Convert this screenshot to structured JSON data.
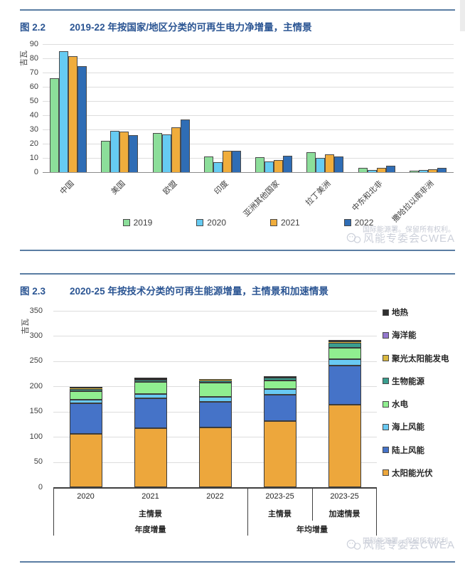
{
  "figure1": {
    "tag": "图 2.2",
    "title": "2019-22 年按国家/地区分类的可再生电力净增量，主情景",
    "watermark": {
      "line1": "国际能源署。保留所有权利。",
      "line2": "风能专委会CWEA"
    }
  },
  "figure2": {
    "tag": "图 2.3",
    "title": "2020-25 年按技术分类的可再生能源增量，主情景和加速情景",
    "watermark": {
      "line1": "国际能源署。保留所有权利。",
      "line2": "风能专委会CWEA"
    }
  },
  "chart_data": [
    {
      "type": "bar",
      "stacked": false,
      "title": "2019-22 年按国家/地区分类的可再生电力净增量，主情景",
      "ylabel": "吉瓦",
      "xlabel": "",
      "ylim": [
        0,
        90
      ],
      "ytick_step": 10,
      "grid": true,
      "legend_position": "bottom",
      "categories": [
        "中国",
        "美国",
        "欧盟",
        "印度",
        "亚洲其他国家",
        "拉丁美洲",
        "中东和北非",
        "撒哈拉以南非洲"
      ],
      "series": [
        {
          "name": "2019",
          "color": "#8cde9a",
          "values": [
            66,
            22,
            27.5,
            11,
            10.5,
            14,
            3,
            1
          ]
        },
        {
          "name": "2020",
          "color": "#66cbf2",
          "values": [
            85,
            29,
            26.5,
            7,
            7.5,
            10,
            1.5,
            1.5
          ]
        },
        {
          "name": "2021",
          "color": "#f0ad3c",
          "values": [
            81.5,
            28.5,
            31.5,
            15,
            8.5,
            12.5,
            3,
            2
          ]
        },
        {
          "name": "2022",
          "color": "#2f6db5",
          "values": [
            74.5,
            26,
            37,
            15,
            11.5,
            11,
            4.5,
            3
          ]
        }
      ]
    },
    {
      "type": "bar",
      "stacked": true,
      "title": "2020-25 年按技术分类的可再生能源增量，主情景和加速情景",
      "ylabel": "吉瓦",
      "xlabel": "",
      "ylim": [
        0,
        350
      ],
      "ytick_step": 50,
      "grid": true,
      "legend_position": "right",
      "categories": [
        "2020",
        "2021",
        "2022",
        "2023-25",
        "2023-25"
      ],
      "series": [
        {
          "name": "太阳能光伏",
          "color": "#eda73c",
          "values": [
            106,
            117,
            118,
            131,
            164
          ]
        },
        {
          "name": "陆上风能",
          "color": "#4573c8",
          "values": [
            61,
            60,
            52,
            52,
            77
          ]
        },
        {
          "name": "海上风能",
          "color": "#69c9f2",
          "values": [
            6,
            8,
            9,
            12,
            13
          ]
        },
        {
          "name": "水电",
          "color": "#90ee90",
          "values": [
            17,
            24,
            29,
            17,
            22
          ]
        },
        {
          "name": "生物能源",
          "color": "#3a9e8f",
          "values": [
            5,
            4,
            4,
            5,
            11
          ]
        },
        {
          "name": "聚光太阳能发电",
          "color": "#d9b83f",
          "values": [
            0.5,
            0.5,
            0.5,
            0.5,
            1
          ]
        },
        {
          "name": "海洋能",
          "color": "#9478ce",
          "values": [
            0.3,
            0.3,
            0.2,
            0.3,
            0.5
          ]
        },
        {
          "name": "地热",
          "color": "#2f2f2f",
          "values": [
            3,
            3,
            2.5,
            2,
            3.5
          ]
        }
      ],
      "legend_order_top_to_bottom": [
        "地热",
        "海洋能",
        "聚光太阳能发电",
        "生物能源",
        "水电",
        "海上风能",
        "陆上风能",
        "太阳能光伏"
      ],
      "x_axis_groups": [
        {
          "row": 2,
          "labels": [
            {
              "text": "主情景",
              "from": 0,
              "to": 2
            },
            {
              "text": "主情景",
              "from": 3,
              "to": 3
            },
            {
              "text": "加速情景",
              "from": 4,
              "to": 4
            }
          ]
        },
        {
          "row": 3,
          "labels": [
            {
              "text": "年度增量",
              "from": 0,
              "to": 2
            },
            {
              "text": "年均增量",
              "from": 3,
              "to": 4
            }
          ]
        }
      ]
    }
  ]
}
